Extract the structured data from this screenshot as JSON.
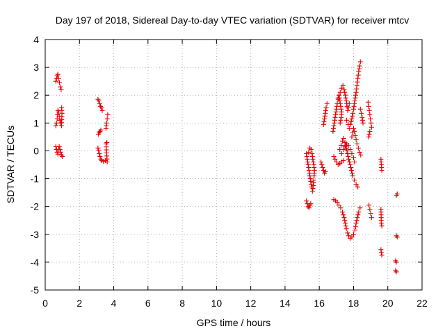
{
  "chart_data": {
    "type": "scatter",
    "title": "Day 197 of 2018, Sidereal Day-to-day VTEC variation (SDTVAR) for receiver mtcv",
    "xlabel": "GPS time / hours",
    "ylabel": "SDTVAR / TECUs",
    "xlim": [
      0,
      22
    ],
    "ylim": [
      -5,
      4
    ],
    "xticks": [
      0,
      2,
      4,
      6,
      8,
      10,
      12,
      14,
      16,
      18,
      20,
      22
    ],
    "yticks": [
      -5,
      -4,
      -3,
      -2,
      -1,
      0,
      1,
      2,
      3,
      4
    ],
    "grid": true,
    "marker": "+",
    "marker_color": "#e00000",
    "series": [
      {
        "name": "SDTVAR",
        "segments": [
          [
            [
              0.62,
              2.5
            ],
            [
              0.66,
              2.6
            ],
            [
              0.7,
              2.7
            ],
            [
              0.74,
              2.75
            ],
            [
              0.78,
              2.6
            ],
            [
              0.83,
              2.45
            ],
            [
              0.88,
              2.3
            ],
            [
              0.93,
              2.2
            ]
          ],
          [
            [
              0.62,
              0.9
            ],
            [
              0.66,
              1.0
            ],
            [
              0.7,
              1.15
            ],
            [
              0.72,
              1.3
            ],
            [
              0.74,
              1.45
            ],
            [
              0.78,
              1.4
            ],
            [
              0.82,
              1.25
            ],
            [
              0.86,
              1.1
            ],
            [
              0.9,
              1.0
            ],
            [
              0.95,
              0.9
            ],
            [
              0.98,
              1.35
            ],
            [
              0.96,
              1.55
            ]
          ],
          [
            [
              0.62,
              0.15
            ],
            [
              0.66,
              0.05
            ],
            [
              0.7,
              -0.05
            ],
            [
              0.74,
              -0.12
            ],
            [
              0.78,
              0.05
            ],
            [
              0.82,
              0.15
            ],
            [
              0.86,
              0.05
            ],
            [
              0.9,
              -0.05
            ],
            [
              0.95,
              -0.15
            ],
            [
              1.0,
              -0.2
            ]
          ],
          [
            [
              3.08,
              1.85
            ],
            [
              3.13,
              1.8
            ],
            [
              3.18,
              1.7
            ],
            [
              3.23,
              1.6
            ],
            [
              3.28,
              1.55
            ],
            [
              3.33,
              1.45
            ]
          ],
          [
            [
              3.1,
              0.6
            ],
            [
              3.15,
              0.65
            ],
            [
              3.2,
              0.7
            ],
            [
              3.25,
              0.75
            ],
            [
              3.55,
              0.8
            ],
            [
              3.58,
              1.0
            ],
            [
              3.62,
              1.15
            ],
            [
              3.65,
              1.3
            ]
          ],
          [
            [
              3.08,
              0.1
            ],
            [
              3.12,
              0.0
            ],
            [
              3.16,
              -0.1
            ],
            [
              3.2,
              -0.2
            ],
            [
              3.25,
              -0.3
            ],
            [
              3.3,
              -0.35
            ],
            [
              3.4,
              -0.38
            ],
            [
              3.52,
              -0.35
            ],
            [
              3.62,
              -0.4
            ],
            [
              3.55,
              0.25
            ],
            [
              3.6,
              0.3
            ]
          ],
          [
            [
              15.25,
              -1.8
            ],
            [
              15.3,
              -1.9
            ],
            [
              15.35,
              -2.0
            ],
            [
              15.4,
              -2.05
            ],
            [
              15.45,
              -1.95
            ],
            [
              15.5,
              -1.9
            ]
          ],
          [
            [
              15.25,
              -0.1
            ],
            [
              15.3,
              -0.3
            ],
            [
              15.35,
              -0.5
            ],
            [
              15.4,
              -0.7
            ],
            [
              15.45,
              -0.9
            ],
            [
              15.5,
              -1.1
            ],
            [
              15.55,
              -1.3
            ],
            [
              15.6,
              -1.45
            ],
            [
              15.65,
              -1.25
            ],
            [
              15.68,
              -1.05
            ],
            [
              15.7,
              -0.9
            ],
            [
              15.72,
              -0.7
            ],
            [
              15.68,
              -0.5
            ],
            [
              15.62,
              -0.3
            ],
            [
              15.58,
              -0.1
            ],
            [
              15.52,
              0.05
            ],
            [
              15.45,
              0.1
            ],
            [
              15.38,
              -0.05
            ]
          ],
          [
            [
              16.1,
              -0.4
            ],
            [
              16.15,
              -0.5
            ],
            [
              16.2,
              -0.6
            ],
            [
              16.25,
              -0.7
            ],
            [
              16.3,
              -0.8
            ],
            [
              16.35,
              -0.75
            ]
          ],
          [
            [
              16.25,
              0.95
            ],
            [
              16.3,
              1.15
            ],
            [
              16.35,
              1.35
            ],
            [
              16.4,
              1.55
            ],
            [
              16.45,
              1.7
            ]
          ],
          [
            [
              16.85,
              -1.75
            ],
            [
              16.95,
              -1.8
            ],
            [
              17.05,
              -1.85
            ],
            [
              17.15,
              -1.95
            ],
            [
              17.25,
              -2.05
            ],
            [
              17.35,
              -2.2
            ],
            [
              17.45,
              -2.4
            ],
            [
              17.52,
              -2.6
            ],
            [
              17.58,
              -2.8
            ],
            [
              17.65,
              -2.95
            ],
            [
              17.72,
              -3.05
            ],
            [
              17.8,
              -3.15
            ],
            [
              17.9,
              -3.1
            ],
            [
              18.0,
              -3.0
            ],
            [
              18.08,
              -2.85
            ],
            [
              18.15,
              -2.6
            ],
            [
              18.22,
              -2.4
            ],
            [
              18.3,
              -2.2
            ],
            [
              18.38,
              -2.05
            ]
          ],
          [
            [
              16.8,
              0.7
            ],
            [
              16.85,
              0.9
            ],
            [
              16.9,
              1.1
            ],
            [
              16.95,
              1.3
            ],
            [
              17.0,
              1.5
            ],
            [
              17.05,
              1.7
            ],
            [
              17.1,
              1.85
            ],
            [
              17.15,
              2.0
            ],
            [
              17.2,
              1.8
            ],
            [
              17.25,
              1.6
            ],
            [
              17.3,
              1.4
            ],
            [
              17.28,
              1.2
            ],
            [
              17.22,
              1.0
            ]
          ],
          [
            [
              16.85,
              -0.2
            ],
            [
              16.92,
              -0.3
            ],
            [
              17.0,
              -0.4
            ],
            [
              17.1,
              -0.5
            ],
            [
              17.2,
              -0.45
            ],
            [
              17.3,
              -0.4
            ],
            [
              17.4,
              -0.35
            ]
          ],
          [
            [
              17.1,
              1.9
            ],
            [
              17.15,
              2.0
            ],
            [
              17.22,
              2.1
            ],
            [
              17.3,
              2.25
            ],
            [
              17.38,
              2.35
            ],
            [
              17.45,
              2.2
            ],
            [
              17.52,
              2.0
            ],
            [
              17.58,
              1.8
            ],
            [
              17.62,
              1.6
            ],
            [
              17.66,
              1.45
            ],
            [
              17.7,
              1.55
            ],
            [
              17.75,
              1.7
            ]
          ],
          [
            [
              17.2,
              0.05
            ],
            [
              17.28,
              0.2
            ],
            [
              17.35,
              0.35
            ],
            [
              17.42,
              0.45
            ],
            [
              17.5,
              0.3
            ],
            [
              17.58,
              0.1
            ],
            [
              17.65,
              -0.1
            ],
            [
              17.72,
              -0.3
            ],
            [
              17.8,
              -0.5
            ],
            [
              17.88,
              -0.7
            ],
            [
              17.95,
              -0.9
            ],
            [
              18.05,
              -1.05
            ],
            [
              18.15,
              -1.2
            ],
            [
              18.25,
              -1.3
            ]
          ],
          [
            [
              17.3,
              -0.1
            ],
            [
              17.4,
              0.05
            ],
            [
              17.5,
              0.15
            ],
            [
              17.6,
              0.25
            ],
            [
              17.7,
              0.2
            ],
            [
              17.8,
              0.05
            ],
            [
              17.9,
              -0.1
            ],
            [
              18.0,
              -0.25
            ],
            [
              18.05,
              -0.4
            ]
          ],
          [
            [
              17.6,
              1.1
            ],
            [
              17.68,
              0.95
            ],
            [
              17.75,
              0.8
            ],
            [
              17.82,
              0.95
            ],
            [
              17.9,
              1.15
            ],
            [
              17.96,
              1.35
            ],
            [
              18.0,
              1.5
            ],
            [
              18.05,
              1.7
            ],
            [
              18.1,
              1.9
            ],
            [
              18.15,
              2.1
            ],
            [
              18.2,
              2.35
            ],
            [
              18.25,
              2.6
            ],
            [
              18.3,
              2.85
            ],
            [
              18.35,
              3.05
            ],
            [
              18.4,
              3.2
            ]
          ],
          [
            [
              17.9,
              0.5
            ],
            [
              17.95,
              0.65
            ],
            [
              18.0,
              0.8
            ],
            [
              18.05,
              0.7
            ],
            [
              18.1,
              0.55
            ],
            [
              18.15,
              0.4
            ],
            [
              18.2,
              0.25
            ],
            [
              18.28,
              0.1
            ],
            [
              18.35,
              -0.05
            ],
            [
              18.42,
              -0.15
            ]
          ],
          [
            [
              18.4,
              1.5
            ],
            [
              18.45,
              1.35
            ],
            [
              18.5,
              1.2
            ],
            [
              18.55,
              1.0
            ]
          ],
          [
            [
              18.85,
              1.75
            ],
            [
              18.88,
              1.6
            ],
            [
              18.92,
              1.45
            ],
            [
              18.95,
              1.3
            ],
            [
              18.98,
              1.15
            ],
            [
              19.02,
              1.0
            ],
            [
              19.05,
              0.85
            ],
            [
              18.95,
              0.7
            ],
            [
              18.88,
              0.5
            ]
          ],
          [
            [
              18.9,
              -1.95
            ],
            [
              18.95,
              -2.1
            ],
            [
              19.0,
              -2.25
            ],
            [
              19.05,
              -2.4
            ]
          ],
          [
            [
              19.6,
              -0.3
            ],
            [
              19.62,
              -0.5
            ],
            [
              19.65,
              -0.7
            ]
          ],
          [
            [
              19.6,
              -2.1
            ],
            [
              19.62,
              -2.6
            ],
            [
              19.65,
              -2.7
            ]
          ],
          [
            [
              19.6,
              -3.55
            ],
            [
              19.62,
              -3.65
            ],
            [
              19.65,
              -3.75
            ]
          ],
          [
            [
              20.5,
              -1.6
            ],
            [
              20.55,
              -1.55
            ]
          ],
          [
            [
              20.5,
              -3.05
            ],
            [
              20.55,
              -3.1
            ]
          ],
          [
            [
              20.45,
              -3.95
            ],
            [
              20.5,
              -4.0
            ]
          ],
          [
            [
              20.45,
              -4.3
            ],
            [
              20.5,
              -4.35
            ]
          ]
        ]
      }
    ]
  }
}
